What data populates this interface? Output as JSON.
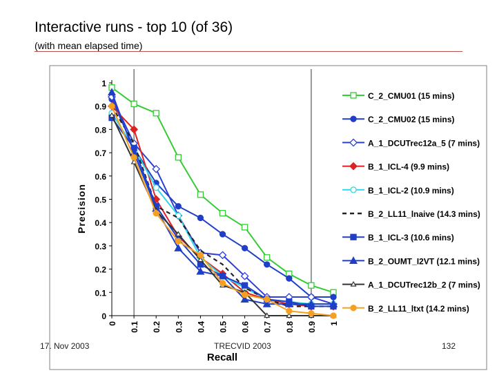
{
  "slide": {
    "title": "Interactive runs - top 10 (of 36)",
    "subtitle": "(with mean elapsed time)",
    "footer_date": "17. Nov 2003",
    "footer_center": "TRECVID 2003",
    "footer_page": "132"
  },
  "chart_data": {
    "type": "line",
    "xlabel": "Recall",
    "ylabel": "Precision",
    "xlim": [
      0,
      1
    ],
    "ylim": [
      0,
      1
    ],
    "x_ticks": [
      "0",
      "0.1",
      "0.2",
      "0.3",
      "0.4",
      "0.5",
      "0.6",
      "0.7",
      "0.8",
      "0.9",
      "1"
    ],
    "y_ticks": [
      "0",
      "0.1",
      "0.2",
      "0.3",
      "0.4",
      "0.5",
      "0.6",
      "0.7",
      "0.8",
      "0.9",
      "1"
    ],
    "grid": "vertical lines at recall 0.1 and 0.9",
    "legend_position": "right",
    "series": [
      {
        "name": "C_2_CMU01  (15 mins)",
        "color": "#33cc33",
        "marker": "square-open",
        "x": [
          0,
          0.1,
          0.2,
          0.3,
          0.4,
          0.5,
          0.6,
          0.7,
          0.8,
          0.9,
          1
        ],
        "y": [
          0.98,
          0.91,
          0.87,
          0.68,
          0.52,
          0.44,
          0.38,
          0.25,
          0.18,
          0.13,
          0.1
        ]
      },
      {
        "name": "C_2_CMU02 (15 mins)",
        "color": "#1f3fc8",
        "marker": "circle",
        "x": [
          0,
          0.1,
          0.2,
          0.3,
          0.4,
          0.5,
          0.6,
          0.7,
          0.8,
          0.9,
          1
        ],
        "y": [
          0.93,
          0.72,
          0.57,
          0.47,
          0.42,
          0.35,
          0.29,
          0.22,
          0.16,
          0.08,
          0.08
        ]
      },
      {
        "name": "A_1_DCUTrec12a_5 (7 mins)",
        "color": "#2d3fd6",
        "marker": "diamond-open",
        "x": [
          0,
          0.1,
          0.2,
          0.3,
          0.4,
          0.5,
          0.6,
          0.7,
          0.8,
          0.9,
          1
        ],
        "y": [
          0.94,
          0.74,
          0.63,
          0.43,
          0.27,
          0.26,
          0.17,
          0.08,
          0.08,
          0.08,
          0.05
        ]
      },
      {
        "name": "B_1_ICL-4 (9.9 mins)",
        "color": "#dd2222",
        "marker": "diamond",
        "x": [
          0,
          0.1,
          0.2,
          0.3,
          0.4,
          0.5,
          0.6,
          0.7,
          0.8,
          0.9,
          1
        ],
        "y": [
          0.9,
          0.8,
          0.5,
          0.34,
          0.25,
          0.18,
          0.1,
          0.07,
          0.05,
          0.04,
          0.04
        ]
      },
      {
        "name": "B_1_ICL-2 (10.9 mins)",
        "color": "#33d6e6",
        "marker": "circle-open",
        "x": [
          0,
          0.1,
          0.2,
          0.3,
          0.4,
          0.5,
          0.6,
          0.7,
          0.8,
          0.9,
          1
        ],
        "y": [
          0.87,
          0.72,
          0.55,
          0.43,
          0.25,
          0.17,
          0.12,
          0.07,
          0.06,
          0.05,
          0.05
        ]
      },
      {
        "name": "B_2_LL11_lnaive (14.3 mins)",
        "color": "#222222",
        "marker": "none",
        "dashed": true,
        "x": [
          0,
          0.1,
          0.2,
          0.3,
          0.4,
          0.5,
          0.6,
          0.7,
          0.8,
          0.9,
          1
        ],
        "y": [
          0.9,
          0.74,
          0.47,
          0.42,
          0.28,
          0.22,
          0.12,
          0.07,
          0.04,
          0.04,
          0.04
        ]
      },
      {
        "name": "B_1_ICL-3 (10.6 mins)",
        "color": "#1f3fc8",
        "marker": "square",
        "x": [
          0,
          0.1,
          0.2,
          0.3,
          0.4,
          0.5,
          0.6,
          0.7,
          0.8,
          0.9,
          1
        ],
        "y": [
          0.85,
          0.72,
          0.47,
          0.33,
          0.22,
          0.17,
          0.13,
          0.07,
          0.06,
          0.04,
          0.04
        ]
      },
      {
        "name": "B_2_OUMT_I2VT (12.1 mins)",
        "color": "#1f3fc8",
        "marker": "triangle",
        "x": [
          0,
          0.1,
          0.2,
          0.3,
          0.4,
          0.5,
          0.6,
          0.7,
          0.8,
          0.9,
          1
        ],
        "y": [
          0.96,
          0.7,
          0.46,
          0.29,
          0.19,
          0.17,
          0.07,
          0.05,
          0.05,
          0.05,
          0.05
        ]
      },
      {
        "name": "A_1_DCUTrec12b_2 (7 mins)",
        "color": "#333333",
        "marker": "triangle-open",
        "x": [
          0,
          0.1,
          0.2,
          0.3,
          0.4,
          0.5,
          0.6,
          0.7,
          0.8,
          0.9,
          1
        ],
        "y": [
          0.86,
          0.66,
          0.45,
          0.35,
          0.24,
          0.13,
          0.1,
          0.0,
          0.0,
          0.0,
          0.0
        ]
      },
      {
        "name": "B_2_LL11_ltxt (14.2 mins)",
        "color": "#f5a020",
        "marker": "circle",
        "x": [
          0,
          0.1,
          0.2,
          0.3,
          0.4,
          0.5,
          0.6,
          0.7,
          0.8,
          0.9,
          1
        ],
        "y": [
          0.9,
          0.68,
          0.44,
          0.32,
          0.26,
          0.14,
          0.09,
          0.07,
          0.02,
          0.01,
          0.0
        ]
      }
    ]
  }
}
